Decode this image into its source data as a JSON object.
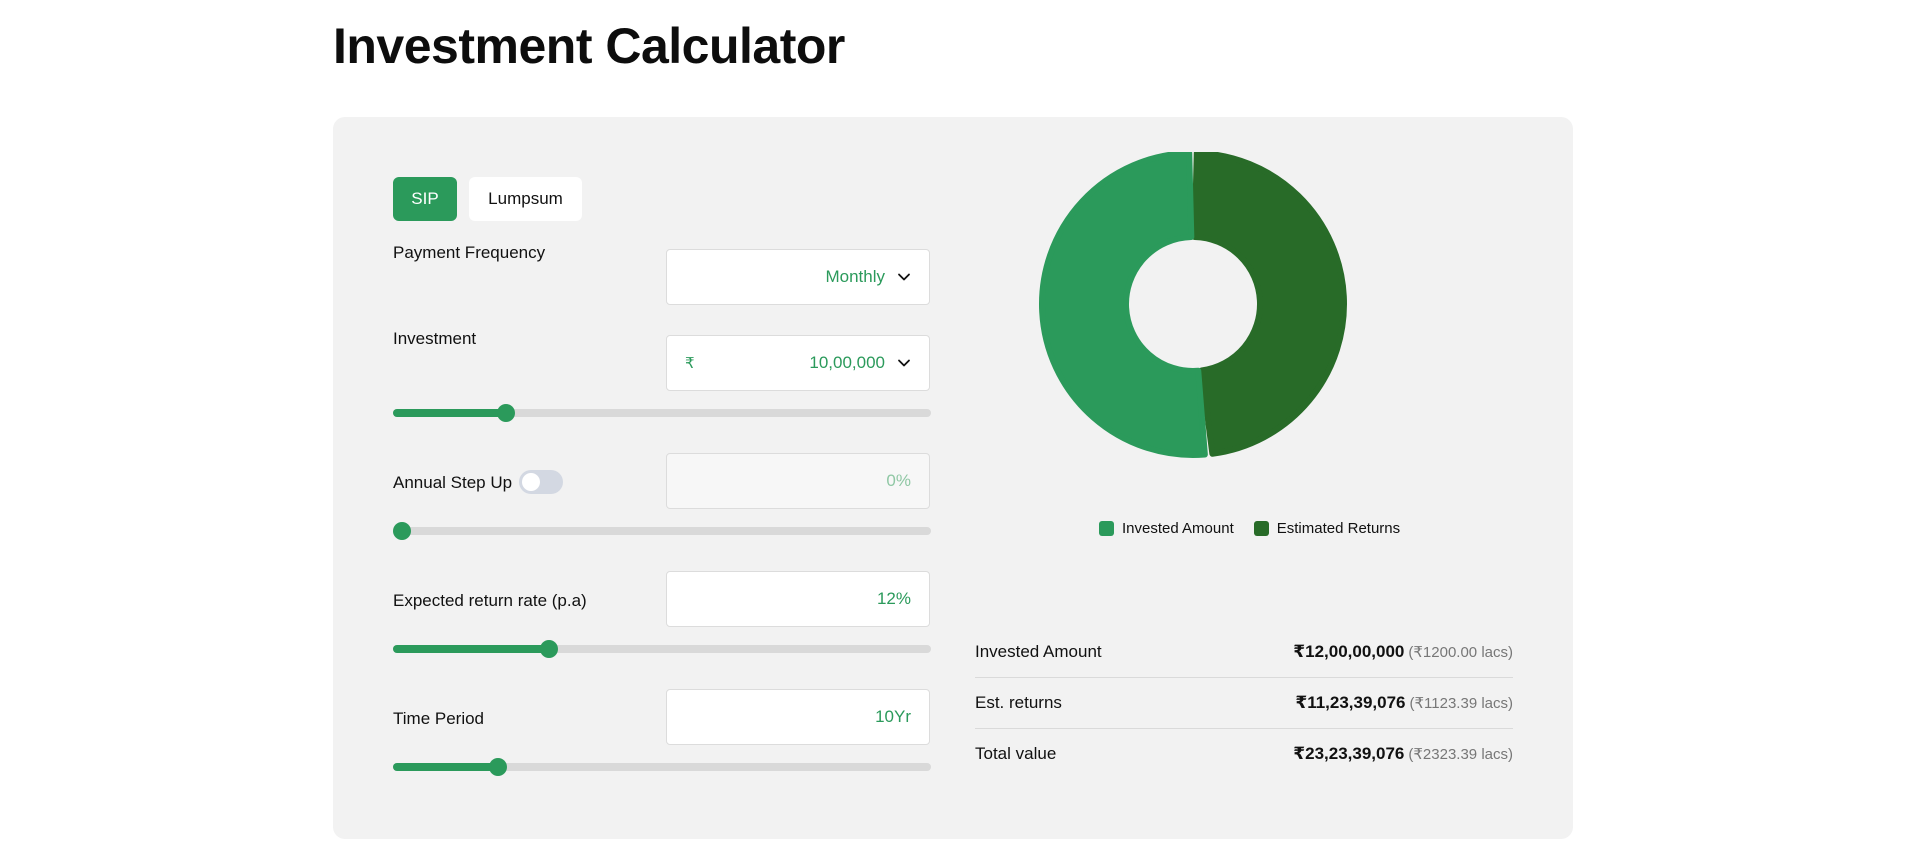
{
  "page": {
    "title": "Investment Calculator"
  },
  "tabs": [
    {
      "label": "SIP",
      "active": true
    },
    {
      "label": "Lumpsum",
      "active": false
    }
  ],
  "form": {
    "payment_frequency": {
      "label": "Payment Frequency",
      "value": "Monthly"
    },
    "investment": {
      "label": "Investment",
      "currency": "₹",
      "value": "10,00,000",
      "slider_fraction": 0.21
    },
    "step_up": {
      "label": "Annual Step Up",
      "enabled": false,
      "value": "0%",
      "slider_fraction": 0.0
    },
    "return_rate": {
      "label": "Expected return rate (p.a)",
      "value": "12%",
      "slider_fraction": 0.29
    },
    "time_period": {
      "label": "Time Period",
      "value": "10Yr",
      "slider_fraction": 0.195
    }
  },
  "chart_data": {
    "type": "pie",
    "donut": true,
    "categories": [
      "Invested Amount",
      "Estimated Returns"
    ],
    "values": [
      120000000,
      112339076
    ],
    "colors": [
      "#2b9a5b",
      "#286b28"
    ],
    "legend_position": "bottom"
  },
  "summary": [
    {
      "label": "Invested Amount",
      "value": "₹12,00,00,000",
      "paren": "(₹1200.00 lacs)"
    },
    {
      "label": "Est. returns",
      "value": "₹11,23,39,076",
      "paren": "(₹1123.39 lacs)"
    },
    {
      "label": "Total value",
      "value": "₹23,23,39,076",
      "paren": "(₹2323.39 lacs)"
    }
  ],
  "colors": {
    "accent": "#2b9a5b",
    "returns": "#286b28",
    "card_bg": "#f2f2f2"
  }
}
